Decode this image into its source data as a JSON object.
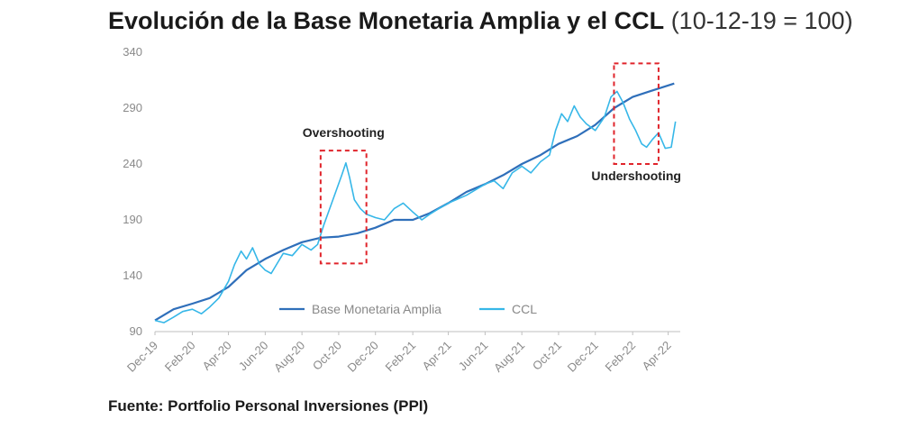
{
  "header": {
    "title": "Evolución de la Base Monetaria Amplia y el CCL",
    "subtitle": "(10-12-19 = 100)"
  },
  "footer": {
    "source": "Fuente: Portfolio Personal Inversiones (PPI)"
  },
  "chart_data": {
    "type": "line",
    "ylim": [
      90,
      340
    ],
    "yticks": [
      90,
      140,
      190,
      240,
      290,
      340
    ],
    "xlim": [
      "2019-12-10",
      "2022-04-30"
    ],
    "xticks": [
      {
        "label": "Dec-19",
        "date": "2019-12-10"
      },
      {
        "label": "Feb-20",
        "date": "2020-02-10"
      },
      {
        "label": "Apr-20",
        "date": "2020-04-10"
      },
      {
        "label": "Jun-20",
        "date": "2020-06-10"
      },
      {
        "label": "Aug-20",
        "date": "2020-08-10"
      },
      {
        "label": "Oct-20",
        "date": "2020-10-10"
      },
      {
        "label": "Dec-20",
        "date": "2020-12-10"
      },
      {
        "label": "Feb-21",
        "date": "2021-02-10"
      },
      {
        "label": "Apr-21",
        "date": "2021-04-10"
      },
      {
        "label": "Jun-21",
        "date": "2021-06-10"
      },
      {
        "label": "Aug-21",
        "date": "2021-08-10"
      },
      {
        "label": "Oct-21",
        "date": "2021-10-10"
      },
      {
        "label": "Dec-21",
        "date": "2021-12-10"
      },
      {
        "label": "Feb-22",
        "date": "2022-02-10"
      },
      {
        "label": "Apr-22",
        "date": "2022-04-10"
      }
    ],
    "grid": false,
    "legend_position": "bottom-center",
    "series": [
      {
        "name": "Base Monetaria Amplia",
        "color": "#2f6fba",
        "points": [
          [
            "2019-12-10",
            100
          ],
          [
            "2020-01-10",
            110
          ],
          [
            "2020-02-10",
            115
          ],
          [
            "2020-03-10",
            120
          ],
          [
            "2020-04-10",
            130
          ],
          [
            "2020-05-10",
            145
          ],
          [
            "2020-06-10",
            155
          ],
          [
            "2020-07-10",
            163
          ],
          [
            "2020-08-10",
            170
          ],
          [
            "2020-09-10",
            174
          ],
          [
            "2020-10-10",
            175
          ],
          [
            "2020-11-10",
            178
          ],
          [
            "2020-12-10",
            183
          ],
          [
            "2021-01-10",
            190
          ],
          [
            "2021-02-10",
            190
          ],
          [
            "2021-03-10",
            196
          ],
          [
            "2021-04-10",
            205
          ],
          [
            "2021-05-10",
            215
          ],
          [
            "2021-06-10",
            222
          ],
          [
            "2021-07-10",
            230
          ],
          [
            "2021-08-10",
            240
          ],
          [
            "2021-09-10",
            248
          ],
          [
            "2021-10-10",
            258
          ],
          [
            "2021-11-10",
            265
          ],
          [
            "2021-12-10",
            275
          ],
          [
            "2022-01-10",
            290
          ],
          [
            "2022-02-10",
            300
          ],
          [
            "2022-03-10",
            305
          ],
          [
            "2022-04-20",
            312
          ]
        ]
      },
      {
        "name": "CCL",
        "color": "#36b7e8",
        "points": [
          [
            "2019-12-10",
            100
          ],
          [
            "2019-12-25",
            98
          ],
          [
            "2020-01-10",
            103
          ],
          [
            "2020-01-25",
            108
          ],
          [
            "2020-02-10",
            110
          ],
          [
            "2020-02-25",
            106
          ],
          [
            "2020-03-10",
            112
          ],
          [
            "2020-03-25",
            120
          ],
          [
            "2020-04-10",
            135
          ],
          [
            "2020-04-20",
            150
          ],
          [
            "2020-05-01",
            162
          ],
          [
            "2020-05-10",
            155
          ],
          [
            "2020-05-20",
            165
          ],
          [
            "2020-06-01",
            150
          ],
          [
            "2020-06-10",
            145
          ],
          [
            "2020-06-20",
            142
          ],
          [
            "2020-07-01",
            152
          ],
          [
            "2020-07-10",
            160
          ],
          [
            "2020-07-25",
            158
          ],
          [
            "2020-08-10",
            168
          ],
          [
            "2020-08-25",
            163
          ],
          [
            "2020-09-05",
            168
          ],
          [
            "2020-09-15",
            185
          ],
          [
            "2020-09-25",
            200
          ],
          [
            "2020-10-05",
            215
          ],
          [
            "2020-10-15",
            230
          ],
          [
            "2020-10-22",
            241
          ],
          [
            "2020-10-28",
            228
          ],
          [
            "2020-11-05",
            208
          ],
          [
            "2020-11-15",
            200
          ],
          [
            "2020-11-25",
            195
          ],
          [
            "2020-12-10",
            192
          ],
          [
            "2020-12-25",
            190
          ],
          [
            "2021-01-10",
            200
          ],
          [
            "2021-01-25",
            205
          ],
          [
            "2021-02-10",
            197
          ],
          [
            "2021-02-25",
            190
          ],
          [
            "2021-03-10",
            195
          ],
          [
            "2021-03-25",
            200
          ],
          [
            "2021-04-10",
            205
          ],
          [
            "2021-05-10",
            212
          ],
          [
            "2021-06-10",
            222
          ],
          [
            "2021-06-25",
            225
          ],
          [
            "2021-07-10",
            218
          ],
          [
            "2021-07-25",
            232
          ],
          [
            "2021-08-10",
            238
          ],
          [
            "2021-08-25",
            232
          ],
          [
            "2021-09-10",
            242
          ],
          [
            "2021-09-25",
            248
          ],
          [
            "2021-10-05",
            270
          ],
          [
            "2021-10-15",
            285
          ],
          [
            "2021-10-25",
            278
          ],
          [
            "2021-11-05",
            292
          ],
          [
            "2021-11-15",
            282
          ],
          [
            "2021-11-25",
            276
          ],
          [
            "2021-12-10",
            270
          ],
          [
            "2021-12-25",
            282
          ],
          [
            "2022-01-05",
            300
          ],
          [
            "2022-01-15",
            305
          ],
          [
            "2022-01-25",
            295
          ],
          [
            "2022-02-05",
            280
          ],
          [
            "2022-02-15",
            270
          ],
          [
            "2022-02-25",
            258
          ],
          [
            "2022-03-05",
            255
          ],
          [
            "2022-03-15",
            262
          ],
          [
            "2022-03-25",
            268
          ],
          [
            "2022-04-05",
            254
          ],
          [
            "2022-04-15",
            255
          ],
          [
            "2022-04-22",
            278
          ]
        ]
      }
    ],
    "annotations": [
      {
        "label": "Overshooting",
        "x0": "2020-09-10",
        "x1": "2020-11-25",
        "y0": 151,
        "y1": 252,
        "label_pos": "top"
      },
      {
        "label": "Undershooting",
        "x0": "2022-01-10",
        "x1": "2022-03-25",
        "y0": 240,
        "y1": 330,
        "label_pos": "bottom"
      }
    ]
  }
}
